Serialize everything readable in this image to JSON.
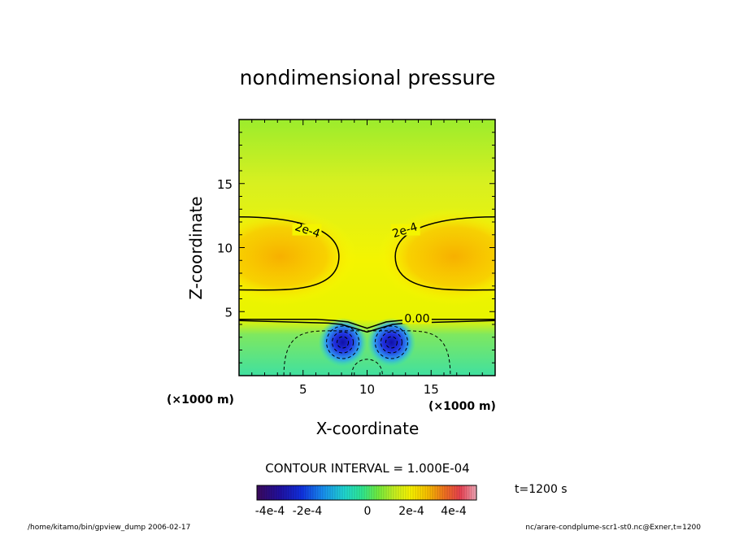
{
  "chart_data": {
    "type": "heatmap",
    "title": "nondimensional pressure",
    "xlabel": "X-coordinate",
    "ylabel": "Z-coordinate",
    "x_unit": "(×1000 m)",
    "z_unit": "(×1000 m)",
    "xlim": [
      0,
      20
    ],
    "ylim": [
      0,
      20
    ],
    "x_ticks": [
      "5",
      "10",
      "15"
    ],
    "y_ticks": [
      "5",
      "10",
      "15"
    ],
    "x_tick_values": [
      5,
      10,
      15
    ],
    "y_tick_values": [
      5,
      10,
      15
    ],
    "contour_labels": [
      "2e-4",
      "2e-4",
      "0.00"
    ],
    "contour_interval_text": "CONTOUR INTERVAL = 1.000E-04",
    "colorbar_range": [
      -0.0005,
      0.0005
    ],
    "colorbar_labels": [
      "-4e-4",
      "-2e-4",
      "0",
      "2e-4",
      "4e-4"
    ],
    "time_label": "t=1200 s",
    "footer_left": "/home/kitamo/bin/gpview_dump  2006-02-17",
    "footer_right": "nc/arare-condplume-scr1-st0.nc@Exner,t=1200"
  }
}
